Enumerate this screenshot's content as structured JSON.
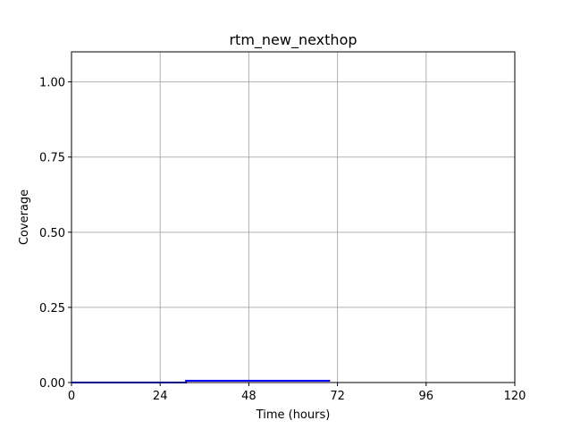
{
  "chart_data": {
    "type": "line",
    "title": "rtm_new_nexthop",
    "xlabel": "Time (hours)",
    "ylabel": "Coverage",
    "xlim": [
      0,
      120
    ],
    "ylim": [
      0,
      1.1
    ],
    "xticks": [
      0,
      24,
      48,
      72,
      96,
      120
    ],
    "xtick_labels": [
      "0",
      "24",
      "48",
      "72",
      "96",
      "120"
    ],
    "yticks": [
      0.0,
      0.25,
      0.5,
      0.75,
      1.0
    ],
    "ytick_labels": [
      "0.00",
      "0.25",
      "0.50",
      "0.75",
      "1.00"
    ],
    "grid": true,
    "series": [
      {
        "color": "#0000ff",
        "x": [
          0,
          31,
          31,
          70
        ],
        "y": [
          0.0,
          0.0,
          0.006,
          0.006
        ]
      }
    ]
  }
}
